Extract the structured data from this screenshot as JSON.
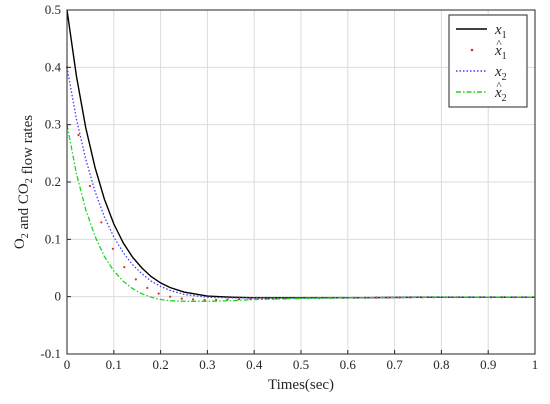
{
  "chart_data": {
    "type": "line",
    "title": "",
    "xlabel": "Times(sec)",
    "ylabel": "O2 and CO2 flow rates",
    "xlim": [
      0,
      1
    ],
    "ylim": [
      -0.1,
      0.5
    ],
    "xticks": [
      "0",
      "0.1",
      "0.2",
      "0.3",
      "0.4",
      "0.5",
      "0.6",
      "0.7",
      "0.8",
      "0.9",
      "1"
    ],
    "yticks": [
      "-0.1",
      "0",
      "0.1",
      "0.2",
      "0.3",
      "0.4",
      "0.5"
    ],
    "grid": true,
    "legend_position": "top-right",
    "series": [
      {
        "name": "x1",
        "label": "x",
        "sub": "1",
        "hat": false,
        "color": "#000000",
        "style": "solid",
        "x": [
          0,
          0.02,
          0.04,
          0.06,
          0.08,
          0.1,
          0.12,
          0.14,
          0.16,
          0.18,
          0.2,
          0.22,
          0.25,
          0.3,
          0.35,
          0.4,
          0.5,
          0.6,
          0.8,
          1.0
        ],
        "y": [
          0.5,
          0.385,
          0.295,
          0.225,
          0.17,
          0.127,
          0.094,
          0.069,
          0.05,
          0.035,
          0.024,
          0.016,
          0.008,
          0.001,
          -0.001,
          -0.002,
          -0.002,
          -0.002,
          -0.001,
          -0.001
        ]
      },
      {
        "name": "x1 hat",
        "label": "x",
        "sub": "1",
        "hat": true,
        "color": "#e8272b",
        "style": "dotted",
        "x": [
          0,
          0.02,
          0.04,
          0.06,
          0.08,
          0.1,
          0.12,
          0.14,
          0.16,
          0.18,
          0.2,
          0.22,
          0.25,
          0.3,
          0.35,
          0.4,
          0.5,
          0.6,
          0.8,
          1.0
        ],
        "y": [
          0.4,
          0.3,
          0.22,
          0.16,
          0.115,
          0.08,
          0.054,
          0.035,
          0.021,
          0.011,
          0.004,
          0.0,
          -0.004,
          -0.006,
          -0.005,
          -0.004,
          -0.003,
          -0.002,
          -0.001,
          -0.001
        ]
      },
      {
        "name": "x2",
        "label": "x",
        "sub": "2",
        "hat": false,
        "color": "#3c3cff",
        "style": "dotted",
        "x": [
          0,
          0.02,
          0.04,
          0.06,
          0.08,
          0.1,
          0.12,
          0.14,
          0.16,
          0.18,
          0.2,
          0.22,
          0.25,
          0.3,
          0.35,
          0.4,
          0.5,
          0.6,
          0.8,
          1.0
        ],
        "y": [
          0.4,
          0.31,
          0.24,
          0.183,
          0.139,
          0.104,
          0.077,
          0.056,
          0.04,
          0.027,
          0.018,
          0.011,
          0.004,
          -0.001,
          -0.002,
          -0.002,
          -0.002,
          -0.002,
          -0.001,
          -0.001
        ]
      },
      {
        "name": "x2 hat",
        "label": "x",
        "sub": "2",
        "hat": true,
        "color": "#1fd41f",
        "style": "dashdot",
        "x": [
          0,
          0.02,
          0.04,
          0.06,
          0.08,
          0.1,
          0.12,
          0.14,
          0.16,
          0.18,
          0.2,
          0.22,
          0.25,
          0.3,
          0.35,
          0.4,
          0.5,
          0.6,
          0.8,
          1.0
        ],
        "y": [
          0.3,
          0.215,
          0.152,
          0.105,
          0.07,
          0.045,
          0.027,
          0.014,
          0.005,
          -0.001,
          -0.005,
          -0.007,
          -0.008,
          -0.008,
          -0.007,
          -0.005,
          -0.003,
          -0.002,
          -0.001,
          -0.001
        ]
      }
    ]
  }
}
